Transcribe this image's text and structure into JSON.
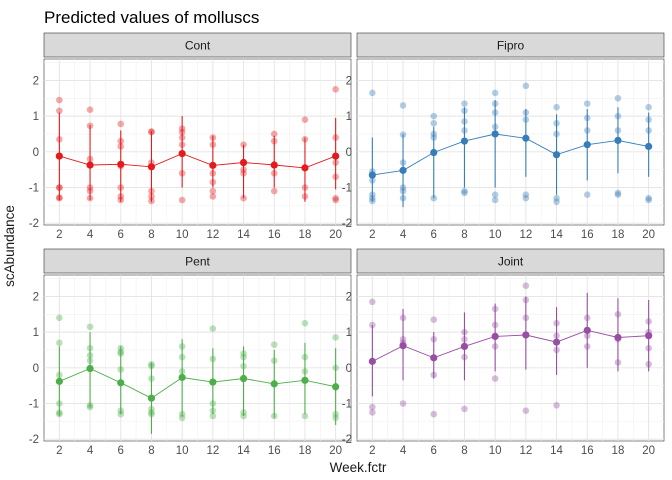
{
  "chart_data": {
    "type": "scatter",
    "title": "Predicted values of molluscs",
    "xlabel": "Week.fctr",
    "ylabel": "scAbundance",
    "x_categories": [
      "2",
      "4",
      "6",
      "8",
      "10",
      "12",
      "14",
      "16",
      "18",
      "20"
    ],
    "y_ticks": [
      -2,
      -1,
      0,
      1,
      2
    ],
    "ylim": [
      -2.05,
      2.6
    ],
    "grid": true,
    "facets": [
      {
        "name": "Cont",
        "color": "#e41a1c",
        "predicted": [
          -0.12,
          -0.37,
          -0.35,
          -0.42,
          -0.05,
          -0.38,
          -0.3,
          -0.37,
          -0.45,
          -0.12
        ],
        "ci_low": [
          -1.35,
          -1.35,
          -1.4,
          -1.4,
          -1.0,
          -1.0,
          -1.3,
          -1.0,
          -1.4,
          -1.05
        ],
        "ci_high": [
          1.1,
          0.75,
          0.6,
          0.58,
          1.0,
          0.45,
          0.2,
          0.45,
          0.4,
          0.95
        ],
        "raw": [
          [
            1.45,
            1.15,
            0.35,
            -1.0,
            -1.28,
            -1.3,
            -1.0
          ],
          [
            1.18,
            0.73,
            -1.0,
            -1.1,
            -1.3,
            -0.2
          ],
          [
            0.78,
            0.3,
            0.15,
            -0.4,
            -1.0,
            -1.25,
            -1.35
          ],
          [
            0.57,
            0.55,
            -0.3,
            -1.1,
            -1.25,
            -1.38
          ],
          [
            0.65,
            0.55,
            0.4,
            0.2,
            -0.6,
            -1.35
          ],
          [
            0.4,
            0.2,
            -0.6,
            -0.85,
            -1.1,
            -1.25
          ],
          [
            0.2,
            -0.5,
            -0.6,
            -1.3
          ],
          [
            0.5,
            0.3,
            -0.6,
            -1.1
          ],
          [
            0.9,
            0.35,
            -1.0,
            -1.25
          ],
          [
            1.75,
            0.4,
            -0.3,
            -0.7,
            -1.3,
            -1.35
          ]
        ]
      },
      {
        "name": "Fipro",
        "color": "#377eb8",
        "predicted": [
          -0.65,
          -0.52,
          -0.02,
          0.3,
          0.5,
          0.38,
          -0.08,
          0.2,
          0.32,
          0.15
        ],
        "ci_low": [
          -1.4,
          -1.55,
          -1.3,
          -1.0,
          -1.0,
          -0.7,
          -1.2,
          -0.8,
          -0.6,
          -0.7
        ],
        "ci_high": [
          0.4,
          0.5,
          0.7,
          1.25,
          1.45,
          1.2,
          1.05,
          1.2,
          1.25,
          1.1
        ],
        "raw": [
          [
            1.65,
            -0.55,
            -0.8,
            -1.2,
            -1.3,
            -1.38
          ],
          [
            1.3,
            0.48,
            -0.3,
            -1.0,
            -1.1,
            -1.3
          ],
          [
            1.0,
            0.8,
            0.5,
            0.4,
            -1.3
          ],
          [
            1.35,
            1.15,
            0.85,
            0.6,
            -1.1,
            -1.15
          ],
          [
            1.65,
            1.35,
            1.1,
            0.7,
            -1.2,
            -1.35
          ],
          [
            1.85,
            1.1,
            0.9,
            -1.2,
            -1.3
          ],
          [
            1.25,
            0.8,
            0.5,
            -1.3,
            -1.4
          ],
          [
            1.35,
            0.95,
            0.6,
            -1.2
          ],
          [
            1.5,
            1.0,
            0.6,
            -1.15,
            -1.2
          ],
          [
            1.25,
            0.9,
            0.6,
            -1.3,
            -1.35
          ]
        ]
      },
      {
        "name": "Pent",
        "color": "#4daf4a",
        "predicted": [
          -0.38,
          -0.02,
          -0.42,
          -0.85,
          -0.27,
          -0.4,
          -0.3,
          -0.45,
          -0.35,
          -0.53
        ],
        "ci_low": [
          -1.35,
          -1.1,
          -1.3,
          -1.85,
          -1.35,
          -1.3,
          -1.35,
          -1.4,
          -1.3,
          -1.6
        ],
        "ci_high": [
          0.6,
          1.0,
          0.6,
          0.15,
          0.8,
          0.55,
          0.6,
          0.5,
          0.7,
          0.55
        ],
        "raw": [
          [
            1.4,
            0.7,
            -0.2,
            -1.0,
            -1.25,
            -1.3
          ],
          [
            1.15,
            0.55,
            0.35,
            0.2,
            -1.05,
            -1.1
          ],
          [
            0.55,
            0.45,
            0.4,
            -0.05,
            -1.2,
            -1.3
          ],
          [
            0.1,
            0.05,
            -0.3,
            -1.15,
            -1.25,
            -1.3
          ],
          [
            0.6,
            0.3,
            -0.1,
            -1.3,
            -1.4
          ],
          [
            1.1,
            0.25,
            -1.0,
            -1.2,
            -1.35
          ],
          [
            0.4,
            0.3,
            0.05,
            -1.25,
            -1.35
          ],
          [
            0.65,
            0.2,
            -1.35
          ],
          [
            1.25,
            0.3,
            -0.1,
            -1.35
          ],
          [
            0.85,
            0.0,
            -0.55,
            -1.3,
            -1.4
          ]
        ]
      },
      {
        "name": "Joint",
        "color": "#984ea3",
        "predicted": [
          0.18,
          0.62,
          0.28,
          0.6,
          0.88,
          0.92,
          0.72,
          1.05,
          0.85,
          0.9
        ],
        "ci_low": [
          -0.8,
          -0.35,
          -0.3,
          -0.35,
          -0.1,
          -0.05,
          -0.2,
          0.0,
          -0.1,
          -0.1
        ],
        "ci_high": [
          1.2,
          1.65,
          1.0,
          1.55,
          1.8,
          2.0,
          1.7,
          2.1,
          1.95,
          1.9
        ],
        "raw": [
          [
            1.85,
            1.2,
            -1.1,
            -1.25
          ],
          [
            1.4,
            0.8,
            0.7,
            -1.0
          ],
          [
            1.35,
            0.8,
            -0.2,
            -1.3
          ],
          [
            1.0,
            0.8,
            0.3,
            -1.15
          ],
          [
            1.65,
            1.2,
            0.6,
            -0.3
          ],
          [
            2.3,
            1.9,
            1.4,
            -1.2
          ],
          [
            1.25,
            0.9,
            0.5,
            -1.05
          ],
          [
            1.4,
            0.9,
            0.6
          ],
          [
            1.5,
            0.8,
            0.15
          ],
          [
            1.3,
            1.0,
            0.55,
            0.1
          ]
        ]
      }
    ]
  }
}
